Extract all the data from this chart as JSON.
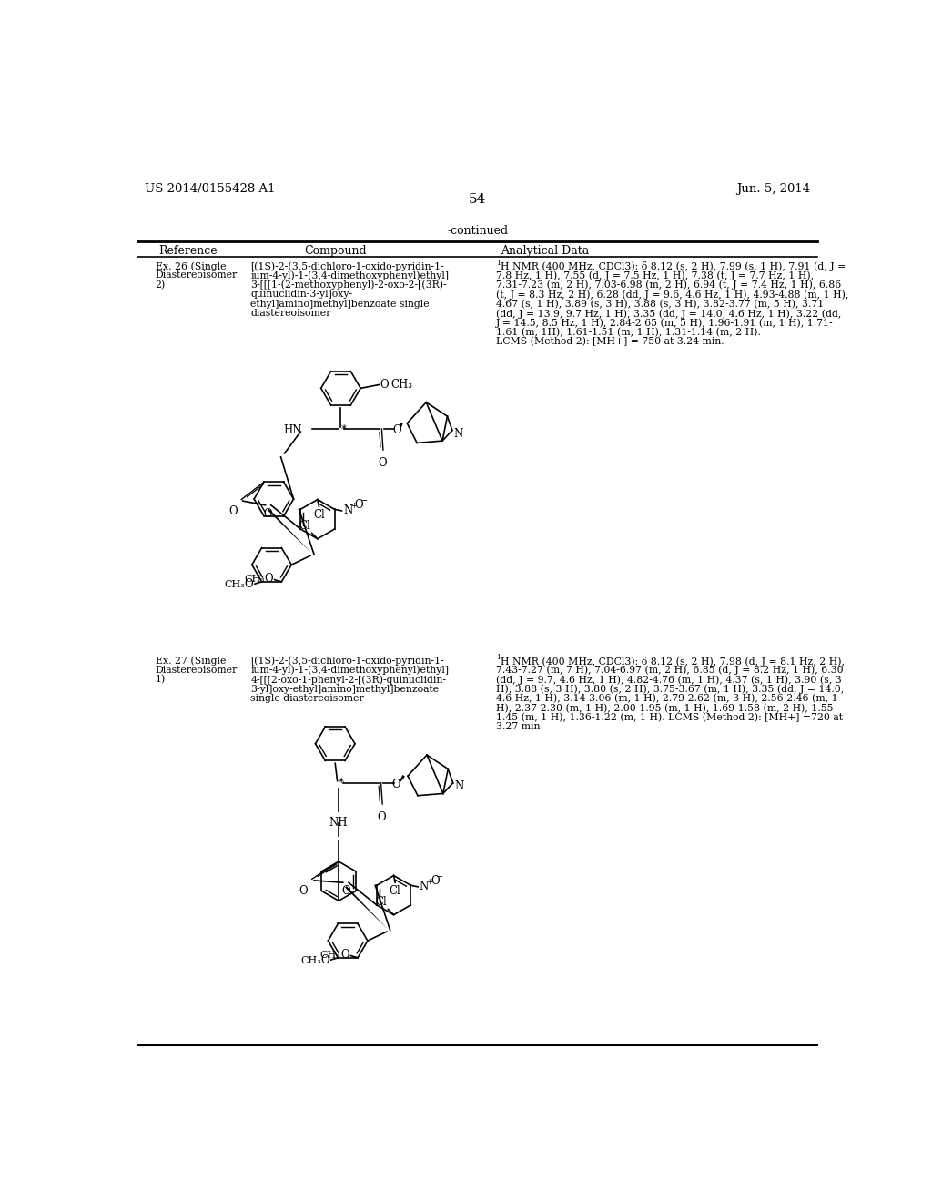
{
  "page_number": "54",
  "patent_number": "US 2014/0155428 A1",
  "patent_date": "Jun. 5, 2014",
  "continued_label": "-continued",
  "col_headers": [
    "Reference",
    "Compound",
    "Analytical Data"
  ],
  "rows": [
    {
      "ref_lines": [
        "Ex. 26 (Single",
        "Diastereoisomer",
        "2)"
      ],
      "compound_lines": [
        "[(1S)-2-(3,5-dichloro-1-oxido-pyridin-1-",
        "ium-4-yl)-1-(3,4-dimethoxyphenyl)ethyl]",
        "3-[[[1-(2-methoxyphenyl)-2-oxo-2-[(3R)-",
        "quinuclidin-3-yl]oxy-",
        "ethyl]amino]methyl]benzoate single",
        "diastereoisomer"
      ],
      "analytical_lines": [
        "H NMR (400 MHz, CDCl3): δ 8.12 (s, 2 H), 7.99 (s, 1 H), 7.91 (d, J =",
        "7.8 Hz, 1 H), 7.55 (d, J = 7.5 Hz, 1 H), 7.38 (t, J = 7.7 Hz, 1 H),",
        "7.31-7.23 (m, 2 H), 7.03-6.98 (m, 2 H), 6.94 (t, J = 7.4 Hz, 1 H), 6.86",
        "(t, J = 8.3 Hz, 2 H), 6.28 (dd, J = 9.6, 4.6 Hz, 1 H), 4.93-4.88 (m, 1 H),",
        "4.67 (s, 1 H), 3.89 (s, 3 H), 3.88 (s, 3 H), 3.82-3.77 (m, 5 H), 3.71",
        "(dd, J = 13.9, 9.7 Hz, 1 H), 3.35 (dd, J = 14.0, 4.6 Hz, 1 H), 3.22 (dd,",
        "J = 14.5, 8.5 Hz, 1 H), 2.84-2.65 (m, 5 H), 1.96-1.91 (m, 1 H), 1.71-",
        "1.61 (m, 1H), 1.61-1.51 (m, 1 H), 1.31-1.14 (m, 2 H).",
        "LCMS (Method 2): [MH+] = 750 at 3.24 min."
      ]
    },
    {
      "ref_lines": [
        "Ex. 27 (Single",
        "Diastereoisomer",
        "1)"
      ],
      "compound_lines": [
        "[(1S)-2-(3,5-dichloro-1-oxido-pyridin-1-",
        "ium-4-yl)-1-(3,4-dimethoxyphenyl)ethyl]",
        "4-[[[2-oxo-1-phenyl-2-[(3R)-quinuclidin-",
        "3-yl]oxy-ethyl]amino]methyl]benzoate",
        "single diastereoisomer"
      ],
      "analytical_lines": [
        "H NMR (400 MHz, CDCl3): δ 8.12 (s, 2 H), 7.98 (d, J = 8.1 Hz, 2 H),",
        "7.43-7.27 (m, 7 H), 7.04-6.97 (m, 2 H), 6.85 (d, J = 8.2 Hz, 1 H), 6.30",
        "(dd, J = 9.7, 4.6 Hz, 1 H), 4.82-4.76 (m, 1 H), 4.37 (s, 1 H), 3.90 (s, 3",
        "H), 3.88 (s, 3 H), 3.80 (s, 2 H), 3.75-3.67 (m, 1 H), 3.35 (dd, J = 14.0,",
        "4.6 Hz, 1 H), 3.14-3.06 (m, 1 H), 2.79-2.62 (m, 3 H), 2.56-2.46 (m, 1",
        "H), 2.37-2.30 (m, 1 H), 2.00-1.95 (m, 1 H), 1.69-1.58 (m, 2 H), 1.55-",
        "1.45 (m, 1 H), 1.36-1.22 (m, 1 H). LCMS (Method 2): [MH+] =720 at",
        "3.27 min"
      ]
    }
  ],
  "bg_color": "#ffffff",
  "text_color": "#000000"
}
